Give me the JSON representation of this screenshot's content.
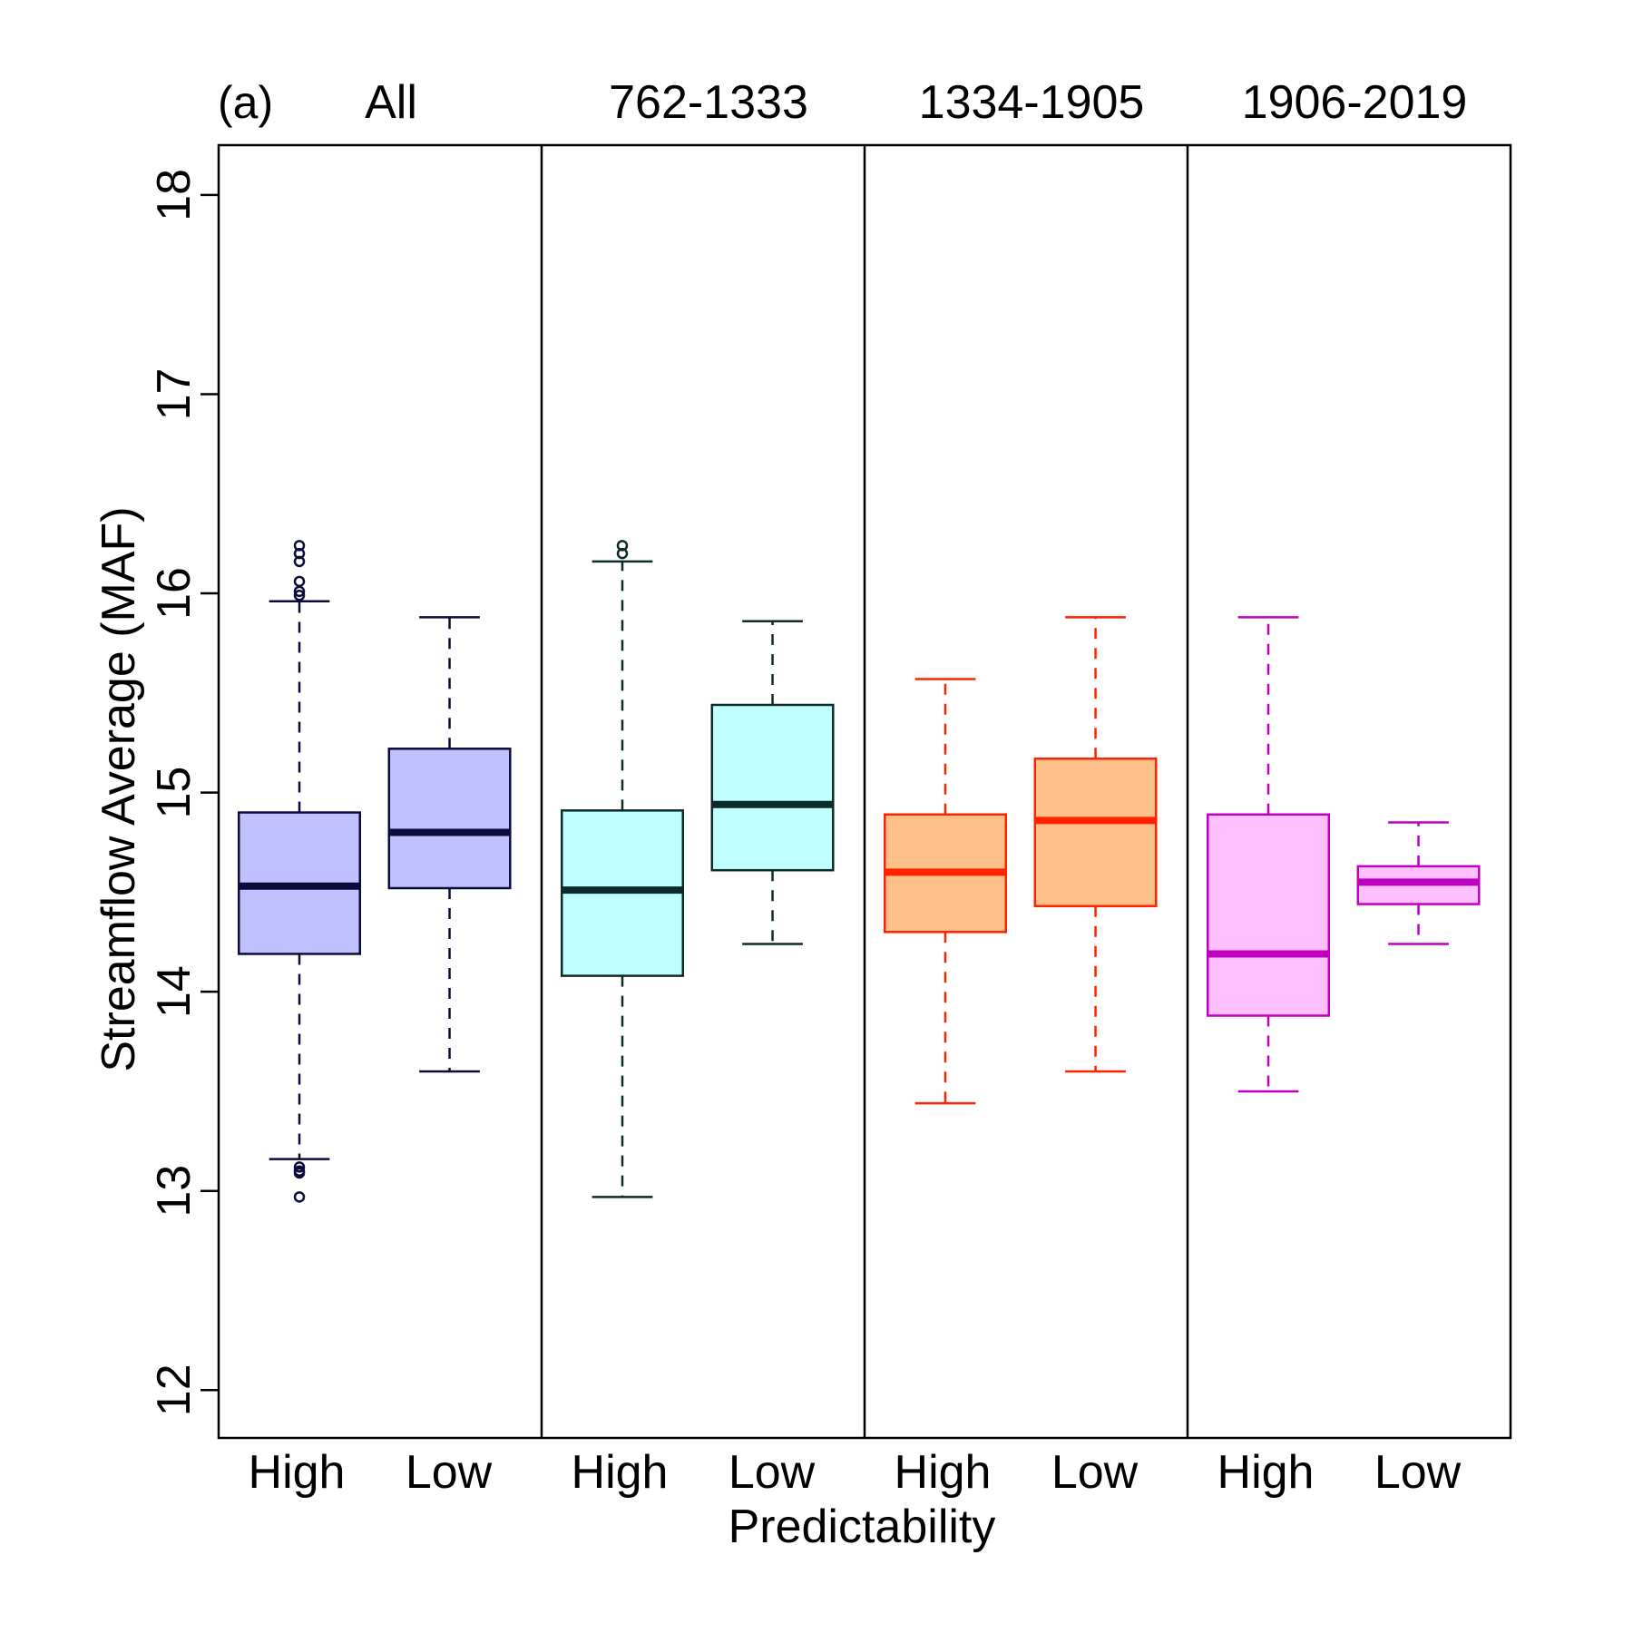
{
  "chart_data": {
    "type": "box",
    "panel_label": "(a)",
    "ylabel": "Streamflow Average (MAF)",
    "xlabel": "Predictability",
    "ylim": [
      11.76,
      18.25
    ],
    "yticks": [
      12,
      13,
      14,
      15,
      16,
      17,
      18
    ],
    "grid": false,
    "groups": [
      {
        "name": "All",
        "color": "#0b0b3b",
        "fill": "#c0c0ff",
        "boxes": [
          {
            "label": "High",
            "whisker_low": 13.16,
            "q1": 14.19,
            "median": 14.53,
            "q3": 14.9,
            "whisker_high": 15.96,
            "outliers": [
              16.24,
              16.2,
              16.16,
              16.06,
              16.01,
              15.99,
              13.12,
              13.1,
              13.09,
              12.97
            ]
          },
          {
            "label": "Low",
            "whisker_low": 13.6,
            "q1": 14.52,
            "median": 14.8,
            "q3": 15.22,
            "whisker_high": 15.88,
            "outliers": []
          }
        ]
      },
      {
        "name": "762-1333",
        "color": "#0d2b28",
        "fill": "#c0ffff",
        "boxes": [
          {
            "label": "High",
            "whisker_low": 12.97,
            "q1": 14.08,
            "median": 14.51,
            "q3": 14.91,
            "whisker_high": 16.16,
            "outliers": [
              16.24,
              16.2
            ]
          },
          {
            "label": "Low",
            "whisker_low": 14.24,
            "q1": 14.61,
            "median": 14.94,
            "q3": 15.44,
            "whisker_high": 15.86,
            "outliers": []
          }
        ]
      },
      {
        "name": "1334-1905",
        "color": "#ff2200",
        "fill": "#ffc08a",
        "boxes": [
          {
            "label": "High",
            "whisker_low": 13.44,
            "q1": 14.3,
            "median": 14.6,
            "q3": 14.89,
            "whisker_high": 15.57,
            "outliers": []
          },
          {
            "label": "Low",
            "whisker_low": 13.6,
            "q1": 14.43,
            "median": 14.86,
            "q3": 15.17,
            "whisker_high": 15.88,
            "outliers": []
          }
        ]
      },
      {
        "name": "1906-2019",
        "color": "#c000c0",
        "fill": "#ffc0ff",
        "boxes": [
          {
            "label": "High",
            "whisker_low": 13.5,
            "q1": 13.88,
            "median": 14.19,
            "q3": 14.89,
            "whisker_high": 15.88,
            "outliers": []
          },
          {
            "label": "Low",
            "whisker_low": 14.24,
            "q1": 14.44,
            "median": 14.55,
            "q3": 14.63,
            "whisker_high": 14.85,
            "outliers": []
          }
        ]
      }
    ]
  }
}
